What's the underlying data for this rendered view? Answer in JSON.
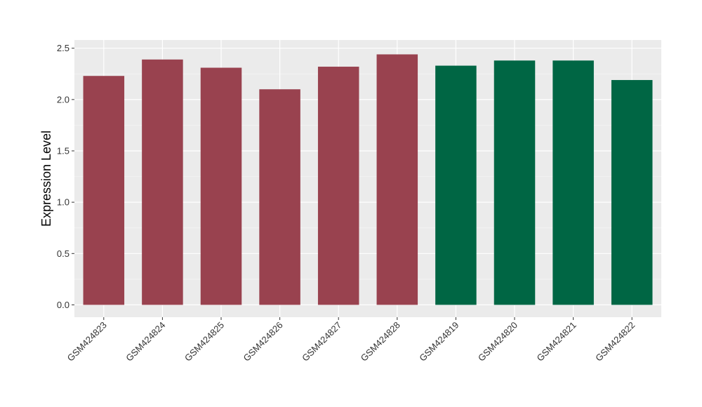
{
  "chart_data": {
    "type": "bar",
    "ylabel": "Expression Level",
    "xlabel": "",
    "ylim": [
      -0.12,
      2.58
    ],
    "yticks": [
      0.0,
      0.5,
      1.0,
      1.5,
      2.0,
      2.5
    ],
    "ytick_labels": [
      "0.0",
      "0.5",
      "1.0",
      "1.5",
      "2.0",
      "2.5"
    ],
    "grid": true,
    "categories": [
      "GSM424823",
      "GSM424824",
      "GSM424825",
      "GSM424826",
      "GSM424827",
      "GSM424828",
      "GSM424819",
      "GSM424820",
      "GSM424821",
      "GSM424822"
    ],
    "values": [
      2.23,
      2.39,
      2.31,
      2.1,
      2.32,
      2.44,
      2.33,
      2.38,
      2.38,
      2.19
    ],
    "bar_colors": [
      "#99424F",
      "#99424F",
      "#99424F",
      "#99424F",
      "#99424F",
      "#99424F",
      "#006644",
      "#006644",
      "#006644",
      "#006644"
    ]
  }
}
